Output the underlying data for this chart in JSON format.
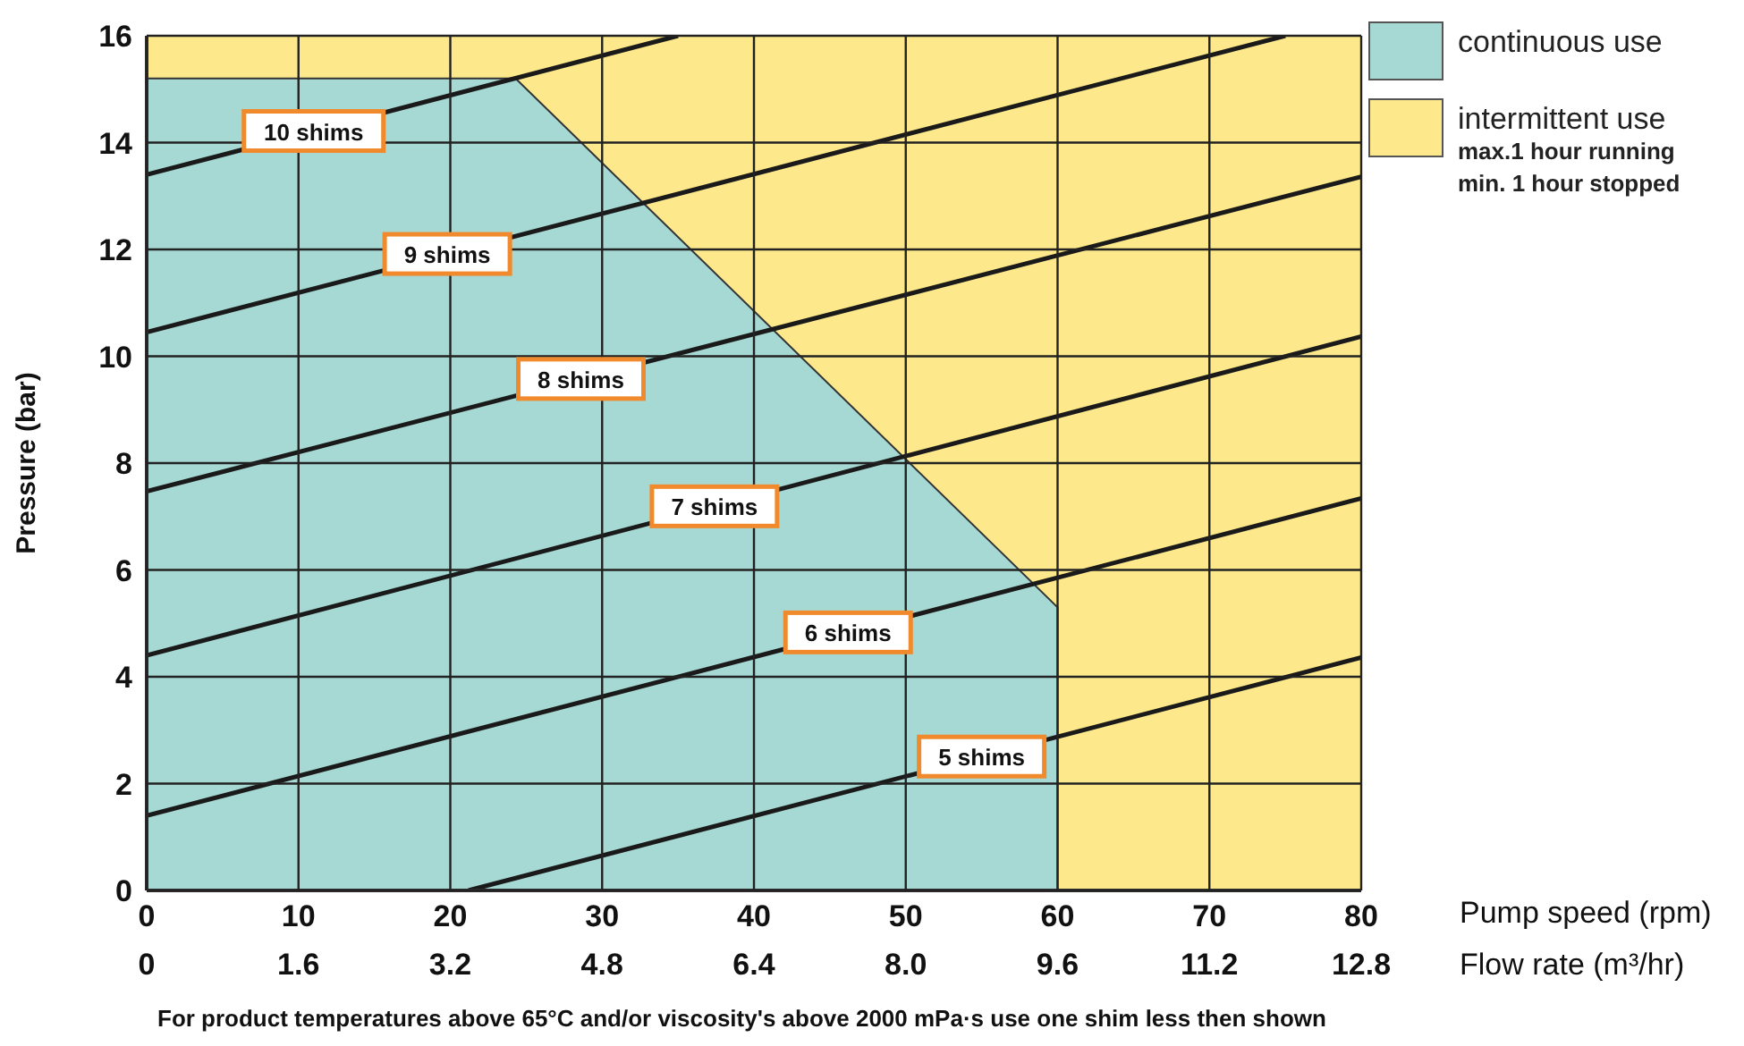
{
  "chart_data": {
    "type": "line",
    "xlabel": "Pump speed (rpm)",
    "x2label": "Flow rate (m³/hr)",
    "ylabel": "Pressure (bar)",
    "xlim": [
      0,
      80
    ],
    "xticks": [
      0,
      10,
      20,
      30,
      40,
      50,
      60,
      70,
      80
    ],
    "x2lim": [
      0,
      12.8
    ],
    "x2ticks": [
      0,
      1.6,
      3.2,
      4.8,
      6.4,
      {
        "value": 8,
        "label": "8.0"
      },
      9.6,
      11.2,
      12.8
    ],
    "ylim": [
      0,
      16
    ],
    "yticks": [
      0,
      2,
      4,
      6,
      8,
      10,
      12,
      14,
      16
    ],
    "grid": true,
    "legend": "top right",
    "marker": "none",
    "line_style": "solid",
    "series": [
      {
        "name": "continuous use",
        "type": "area",
        "color": "#a6d9d4",
        "x": [
          0,
          24.3,
          60,
          60
        ],
        "values": [
          15.2,
          15.2,
          5.3,
          0
        ]
      },
      {
        "name": "intermittent use",
        "type": "area",
        "color": "#fde98b",
        "x": [
          0,
          80
        ],
        "values": [
          16,
          16
        ]
      },
      {
        "name": "10 shims",
        "color": "#1a1a1a",
        "x": [
          0,
          35
        ],
        "values": [
          13.4,
          16
        ]
      },
      {
        "name": "9 shims",
        "color": "#1a1a1a",
        "x": [
          0,
          75
        ],
        "values": [
          10.45,
          16
        ]
      },
      {
        "name": "8 shims",
        "color": "#1a1a1a",
        "x": [
          0,
          80
        ],
        "values": [
          7.47,
          13.36
        ]
      },
      {
        "name": "7 shims",
        "color": "#1a1a1a",
        "x": [
          0,
          80
        ],
        "values": [
          4.4,
          10.37
        ]
      },
      {
        "name": "6 shims",
        "color": "#1a1a1a",
        "x": [
          0,
          80
        ],
        "values": [
          1.4,
          7.34
        ]
      },
      {
        "name": "5 shims",
        "color": "#1a1a1a",
        "x": [
          21.2,
          80
        ],
        "values": [
          0,
          4.36
        ]
      }
    ],
    "annotations": [
      "max.1 hour running",
      "min. 1 hour stopped",
      "For product temperatures above 65°C and/or viscosity's above 2000 mPa·s use one shim less then shown"
    ]
  }
}
